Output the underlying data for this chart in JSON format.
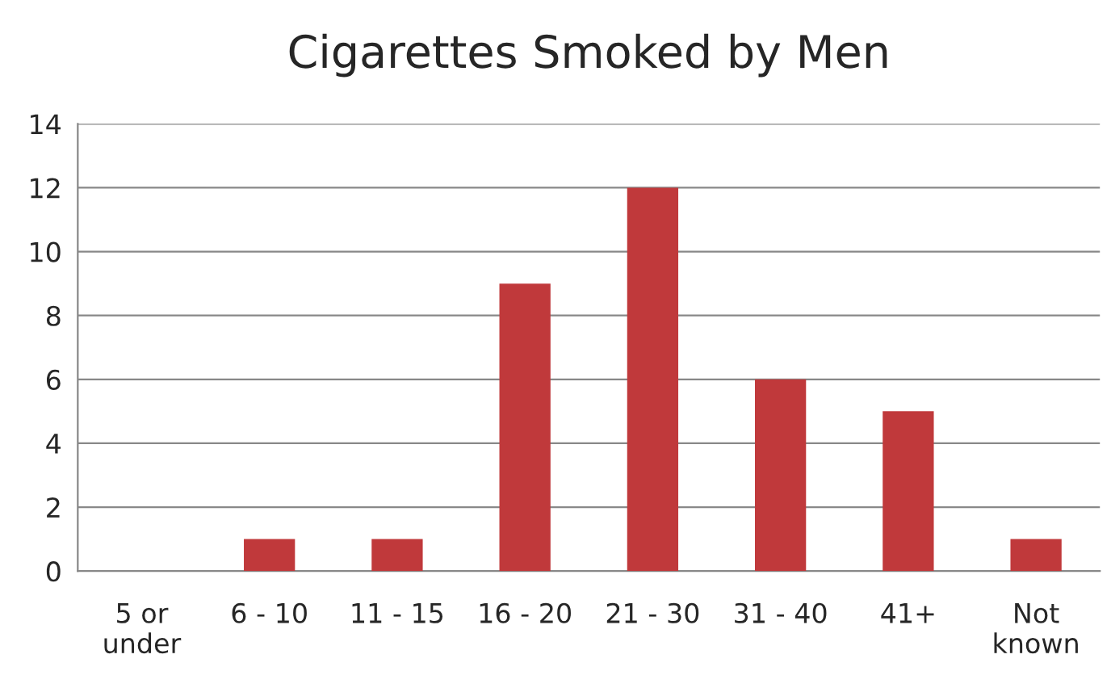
{
  "chart_data": {
    "type": "bar",
    "title": "Cigarettes Smoked by Men",
    "categories": [
      "5 or\nunder",
      "6 - 10",
      "11 - 15",
      "16 - 20",
      "21 - 30",
      "31 - 40",
      "41+",
      "Not\nknown"
    ],
    "values": [
      0,
      1,
      1,
      9,
      12,
      6,
      5,
      1
    ],
    "color": "#c0393b",
    "ylim": [
      0,
      14
    ],
    "yticks": [
      0,
      2,
      4,
      6,
      8,
      10,
      12,
      14
    ],
    "grid": "y",
    "legend": false
  }
}
